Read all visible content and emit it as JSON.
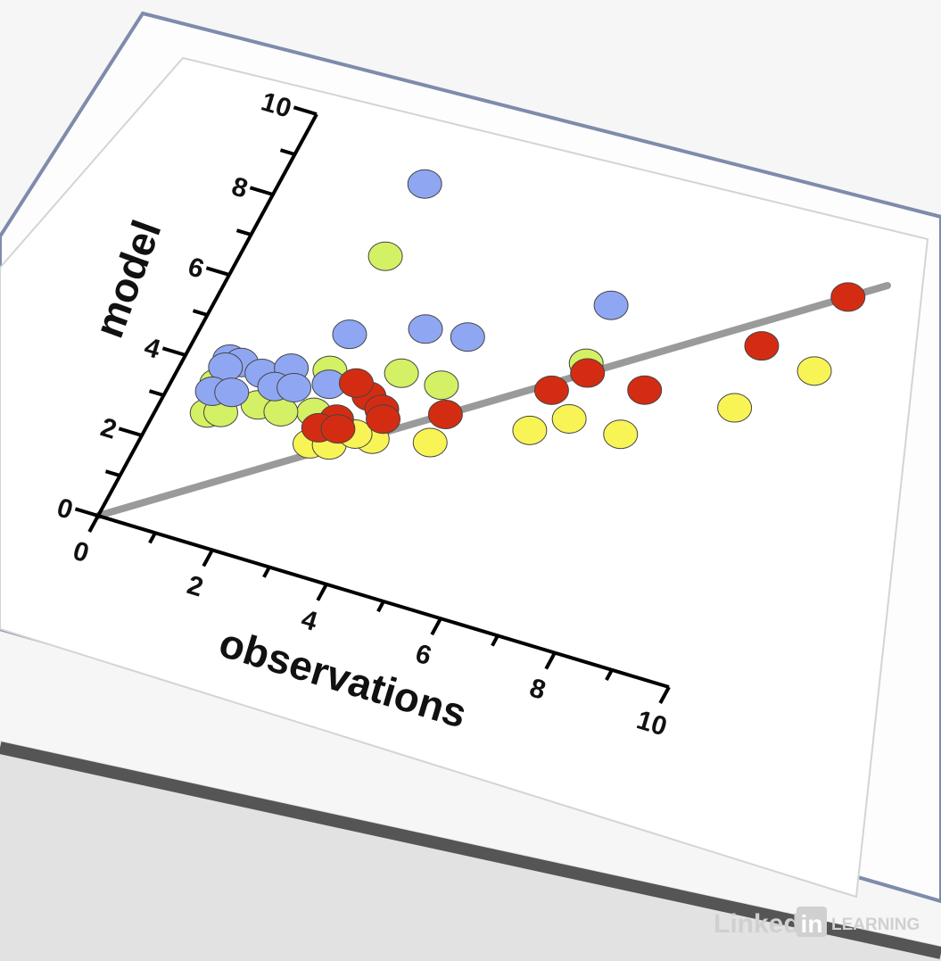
{
  "chart_data": {
    "type": "scatter",
    "x_label": "observations",
    "y_label": "model",
    "xlim": [
      0,
      10
    ],
    "ylim": [
      0,
      10
    ],
    "xticks": [
      0,
      2,
      4,
      6,
      8,
      10
    ],
    "yticks": [
      0,
      2,
      4,
      6,
      8,
      10
    ],
    "xminorticks": [
      1,
      3,
      5,
      7,
      9
    ],
    "yminorticks": [
      1,
      3,
      5,
      7,
      9
    ],
    "reference_line": {
      "x": [
        0,
        10
      ],
      "y": [
        0,
        10
      ],
      "color": "#9a9a9a"
    },
    "series": [
      {
        "color": "#d4f064",
        "x": [
          2.2,
          3.4,
          4.1,
          2.3,
          6.1,
          2.4,
          0.8,
          1.0,
          1.5,
          1.9,
          0.7
        ],
        "values": [
          7.4,
          5.0,
          5.0,
          4.6,
          6.4,
          3.6,
          2.9,
          3.0,
          3.4,
          3.4,
          3.6
        ]
      },
      {
        "color": "#f8f456",
        "x": [
          4.4,
          5.8,
          6.3,
          7.2,
          8.7,
          9.6,
          2.6,
          2.9,
          3.5,
          3.2
        ],
        "values": [
          3.7,
          4.6,
          5.1,
          5.1,
          6.4,
          7.7,
          2.9,
          3.0,
          3.4,
          3.4
        ]
      },
      {
        "color": "#8fa7f2",
        "x": [
          2.2,
          2.3,
          3.4,
          4.1,
          6.0,
          0.7,
          0.9,
          0.7,
          1.3,
          1.7,
          1.6,
          1.9,
          0.7,
          1.0,
          2.4
        ],
        "values": [
          9.2,
          5.5,
          6.1,
          6.2,
          7.8,
          4.2,
          4.2,
          4.0,
          4.1,
          4.4,
          3.9,
          4.0,
          3.4,
          3.5,
          4.3
        ]
      },
      {
        "color": "#d42c12",
        "x": [
          9.5,
          8.6,
          7.2,
          6.2,
          5.8,
          4.4,
          2.8,
          3.1,
          3.4,
          2.6,
          2.8,
          3.5,
          2.9
        ],
        "values": [
          9.5,
          7.9,
          6.2,
          6.2,
          5.6,
          4.4,
          3.6,
          4.3,
          4.1,
          3.3,
          4.5,
          3.9,
          3.4
        ]
      }
    ]
  },
  "watermark": {
    "brand": "Linked",
    "badge": "in",
    "product": "LEARNING"
  }
}
